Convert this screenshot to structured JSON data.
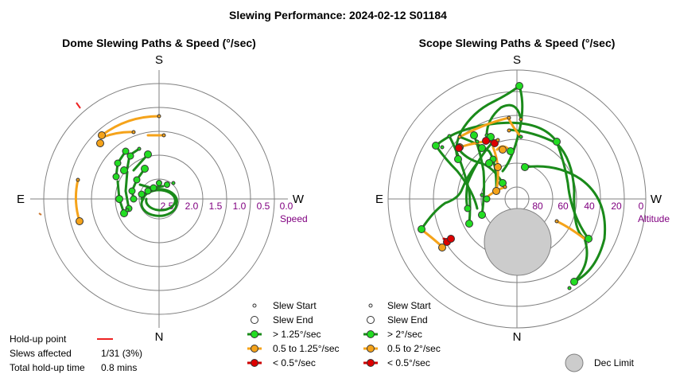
{
  "page_title": "Slewing Performance: 2024-02-12 S01184",
  "dome": {
    "title": "Dome Slewing Paths & Speed (°/sec)",
    "dirs": {
      "s": "S",
      "n": "N",
      "e": "E",
      "w": "W"
    },
    "radial_ticks": [
      "2.5",
      "2.0",
      "1.5",
      "1.0",
      "0.5",
      "0.0"
    ],
    "axis_label": "Speed"
  },
  "scope": {
    "title": "Scope Slewing Paths & Speed (°/sec)",
    "dirs": {
      "s": "S",
      "n": "N",
      "e": "E",
      "w": "W"
    },
    "radial_ticks": [
      "80",
      "60",
      "40",
      "20",
      "0"
    ],
    "axis_label": "Altitude"
  },
  "dome_legend": {
    "items": [
      "Slew Start",
      "Slew End",
      "> 1.25°/sec",
      "0.5 to 1.25°/sec",
      "< 0.5°/sec"
    ]
  },
  "scope_legend": {
    "items": [
      "Slew Start",
      "Slew End",
      "> 2°/sec",
      "0.5 to 2°/sec",
      "< 0.5°/sec"
    ]
  },
  "holdup": {
    "point_label": "Hold-up point",
    "slews_label": "Slews affected",
    "slews_value": "1/31 (3%)",
    "time_label": "Total hold-up time",
    "time_value": "0.8 mins"
  },
  "dec_limit_label": "Dec Limit",
  "colors": {
    "fast": "#1a8a1a",
    "medium": "#f5a31a",
    "slow": "#cc0000",
    "grid": "#808080",
    "marker_fast": "#22dd22",
    "marker_medium": "#f5a31a",
    "marker_slow": "#dd0000",
    "dec_limit": "#cccccc",
    "holdup": "#ee2222"
  },
  "chart_data": [
    {
      "type": "scatter",
      "title": "Dome Slewing Paths & Speed (°/sec)",
      "radial_axis": "Speed",
      "radial_ticks": [
        2.5,
        2.0,
        1.5,
        1.0,
        0.5,
        0.0
      ],
      "slews": 31,
      "speed_bands": [
        "> 1.25°/sec",
        "0.5 to 1.25°/sec",
        "< 0.5°/sec"
      ]
    },
    {
      "type": "scatter",
      "title": "Scope Slewing Paths & Speed (°/sec)",
      "radial_axis": "Altitude",
      "radial_ticks": [
        80,
        60,
        40,
        20,
        0
      ],
      "speed_bands": [
        "> 2°/sec",
        "0.5 to 2°/sec",
        "< 0.5°/sec"
      ]
    }
  ]
}
